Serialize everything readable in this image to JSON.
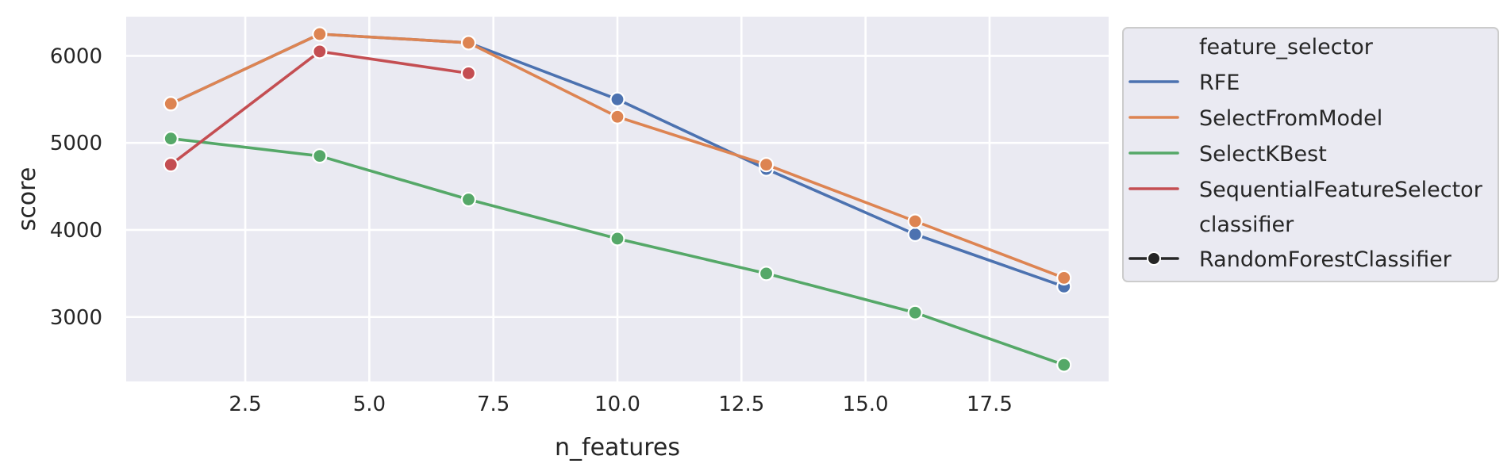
{
  "chart_data": {
    "type": "line",
    "xlabel": "n_features",
    "ylabel": "score",
    "xlim": [
      0.1,
      19.9
    ],
    "ylim": [
      2260,
      6450
    ],
    "xticks": [
      2.5,
      5.0,
      7.5,
      10.0,
      12.5,
      15.0,
      17.5
    ],
    "xtick_labels": [
      "2.5",
      "5.0",
      "7.5",
      "10.0",
      "12.5",
      "15.0",
      "17.5"
    ],
    "yticks": [
      3000,
      4000,
      5000,
      6000
    ],
    "ytick_labels": [
      "3000",
      "4000",
      "5000",
      "6000"
    ],
    "grid": true,
    "legend_placement": "outside-right",
    "legend": {
      "hue_title": "feature_selector",
      "style_title": "classifier",
      "style_entry": "RandomForestClassifier"
    },
    "series": [
      {
        "name": "RFE",
        "color": "#4c72b0",
        "x": [
          1,
          4,
          7,
          10,
          13,
          16,
          19
        ],
        "y": [
          5450,
          6250,
          6150,
          5500,
          4700,
          3950,
          3350
        ]
      },
      {
        "name": "SelectFromModel",
        "color": "#dd8452",
        "x": [
          1,
          4,
          7,
          10,
          13,
          16,
          19
        ],
        "y": [
          5450,
          6250,
          6150,
          5300,
          4750,
          4100,
          3450
        ]
      },
      {
        "name": "SelectKBest",
        "color": "#55a868",
        "x": [
          1,
          4,
          7,
          10,
          13,
          16,
          19
        ],
        "y": [
          5050,
          4850,
          4350,
          3900,
          3500,
          3050,
          2450
        ]
      },
      {
        "name": "SequentialFeatureSelector",
        "color": "#c44e52",
        "x": [
          1,
          4,
          7
        ],
        "y": [
          4750,
          6050,
          5800
        ]
      }
    ]
  }
}
